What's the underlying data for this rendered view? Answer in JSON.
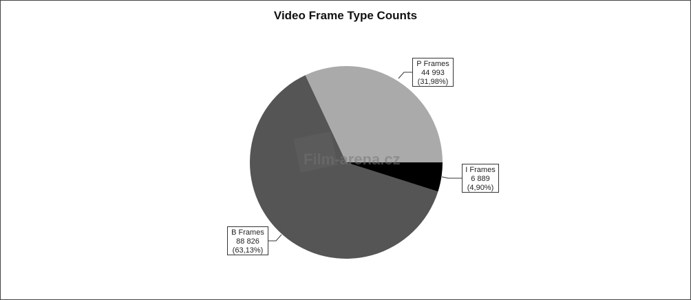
{
  "chart_data": {
    "type": "pie",
    "title": "Video Frame Type Counts",
    "watermark": "Film-arena.cz",
    "slices": [
      {
        "name": "P Frames",
        "value": 44993,
        "value_label": "44 993",
        "percent_label": "(31,98%)",
        "color": "#aaaaaa"
      },
      {
        "name": "B Frames",
        "value": 88826,
        "value_label": "88 826",
        "percent_label": "(63,13%)",
        "color": "#555555"
      },
      {
        "name": "I Frames",
        "value": 6889,
        "value_label": "6 889",
        "percent_label": "(4,90%)",
        "color": "#000000"
      }
    ],
    "start_angle_deg": 0,
    "direction": "counterclockwise",
    "legend": "none"
  }
}
